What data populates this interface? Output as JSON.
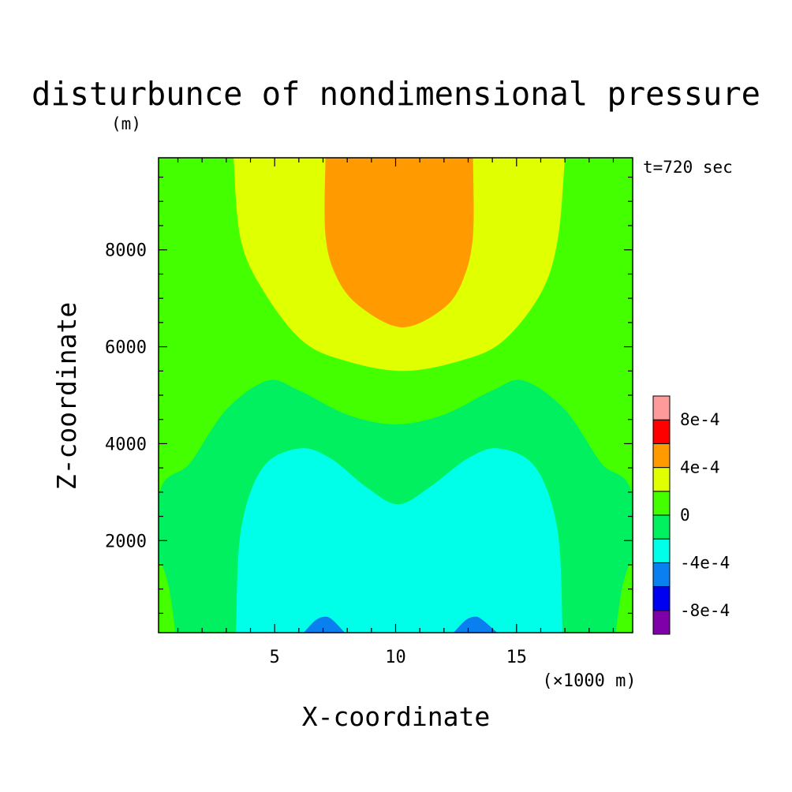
{
  "chart_data": {
    "type": "heatmap",
    "title": "disturbunce of nondimensional pressure",
    "ylabel_unit": "(m)",
    "time_label": "t=720 sec",
    "xlabel": "X-coordinate",
    "xunit": "(×1000 m)",
    "ylabel": "Z-coordinate",
    "xlim": [
      0.2,
      19.8
    ],
    "ylim": [
      100,
      9900
    ],
    "xticks": [
      5,
      10,
      15
    ],
    "xtick_labels": [
      "5",
      "10",
      "15"
    ],
    "yticks": [
      2000,
      4000,
      6000,
      8000
    ],
    "ytick_labels": [
      "2000",
      "4000",
      "6000",
      "8000"
    ],
    "contour_levels": [
      -0.0008,
      -0.0006,
      -0.0004,
      -0.0002,
      0,
      0.0002,
      0.0004,
      0.0006,
      0.0008
    ],
    "level_colors": [
      "#7f00a8",
      "#0000f0",
      "#0a7ff0",
      "#00ffe8",
      "#00f060",
      "#44ff00",
      "#e0ff00",
      "#ff9a00",
      "#ff0000",
      "#ff9a9a"
    ],
    "colorbar_labels": [
      {
        "level": 0.0008,
        "text": "8e-4"
      },
      {
        "level": 0.0004,
        "text": "4e-4"
      },
      {
        "level": 0,
        "text": "0"
      },
      {
        "level": -0.0004,
        "text": "-4e-4"
      },
      {
        "level": -0.0008,
        "text": "-8e-4"
      }
    ],
    "regions": [
      {
        "level_range": "0 to 2e-4",
        "color": "#44ff00",
        "outline": [
          [
            0.2,
            100
          ],
          [
            0.2,
            9900
          ],
          [
            19.8,
            9900
          ],
          [
            19.8,
            100
          ]
        ]
      },
      {
        "level_range": "-2e-4 to 0",
        "color": "#00f060",
        "outline": [
          [
            0.2,
            100
          ],
          [
            0.2,
            2900
          ],
          [
            1.5,
            3600
          ],
          [
            3,
            4700
          ],
          [
            4.7,
            5300
          ],
          [
            6,
            5100
          ],
          [
            8,
            4600
          ],
          [
            10,
            4400
          ],
          [
            12,
            4600
          ],
          [
            14,
            5100
          ],
          [
            15.3,
            5300
          ],
          [
            17,
            4700
          ],
          [
            18.5,
            3600
          ],
          [
            19.8,
            2900
          ],
          [
            19.8,
            100
          ]
        ]
      },
      {
        "level_range": "0 to 2e-4",
        "color": "#44ff00",
        "outline": [
          [
            0.2,
            100
          ],
          [
            0.2,
            1500
          ],
          [
            0.6,
            1100
          ],
          [
            0.9,
            100
          ]
        ]
      },
      {
        "level_range": "0 to 2e-4",
        "color": "#44ff00",
        "outline": [
          [
            19.8,
            100
          ],
          [
            19.8,
            1500
          ],
          [
            19.4,
            1100
          ],
          [
            19.1,
            100
          ]
        ]
      },
      {
        "level_range": "2e-4 to 4e-4",
        "color": "#e0ff00",
        "outline": [
          [
            3.3,
            9900
          ],
          [
            3.6,
            8200
          ],
          [
            4.6,
            7100
          ],
          [
            6.2,
            6100
          ],
          [
            8,
            5700
          ],
          [
            10.3,
            5500
          ],
          [
            12.6,
            5700
          ],
          [
            14.4,
            6100
          ],
          [
            16,
            7100
          ],
          [
            16.7,
            8200
          ],
          [
            17,
            9900
          ]
        ]
      },
      {
        "level_range": "4e-4 to 6e-4",
        "color": "#ff9a00",
        "outline": [
          [
            7.1,
            9900
          ],
          [
            7.1,
            8300
          ],
          [
            7.6,
            7400
          ],
          [
            8.6,
            6800
          ],
          [
            10.3,
            6400
          ],
          [
            12,
            6800
          ],
          [
            12.8,
            7400
          ],
          [
            13.2,
            8300
          ],
          [
            13.2,
            9900
          ]
        ]
      },
      {
        "level_range": "-4e-4 to -2e-4",
        "color": "#00ffe8",
        "outline": [
          [
            3.4,
            100
          ],
          [
            3.6,
            2200
          ],
          [
            4.5,
            3500
          ],
          [
            6,
            3900
          ],
          [
            7.3,
            3700
          ],
          [
            8.8,
            3100
          ],
          [
            10.1,
            2750
          ],
          [
            11.4,
            3100
          ],
          [
            13,
            3700
          ],
          [
            14.3,
            3900
          ],
          [
            15.8,
            3500
          ],
          [
            16.7,
            2200
          ],
          [
            16.9,
            100
          ]
        ]
      },
      {
        "level_range": "-6e-4 to -4e-4",
        "color": "#0a7ff0",
        "outline": [
          [
            6.2,
            100
          ],
          [
            6.7,
            360
          ],
          [
            7.1,
            430
          ],
          [
            7.4,
            360
          ],
          [
            7.9,
            100
          ]
        ]
      },
      {
        "level_range": "-6e-4 to -4e-4",
        "color": "#0a7ff0",
        "outline": [
          [
            12.4,
            100
          ],
          [
            12.9,
            360
          ],
          [
            13.3,
            430
          ],
          [
            13.6,
            360
          ],
          [
            14.2,
            100
          ]
        ]
      }
    ]
  }
}
